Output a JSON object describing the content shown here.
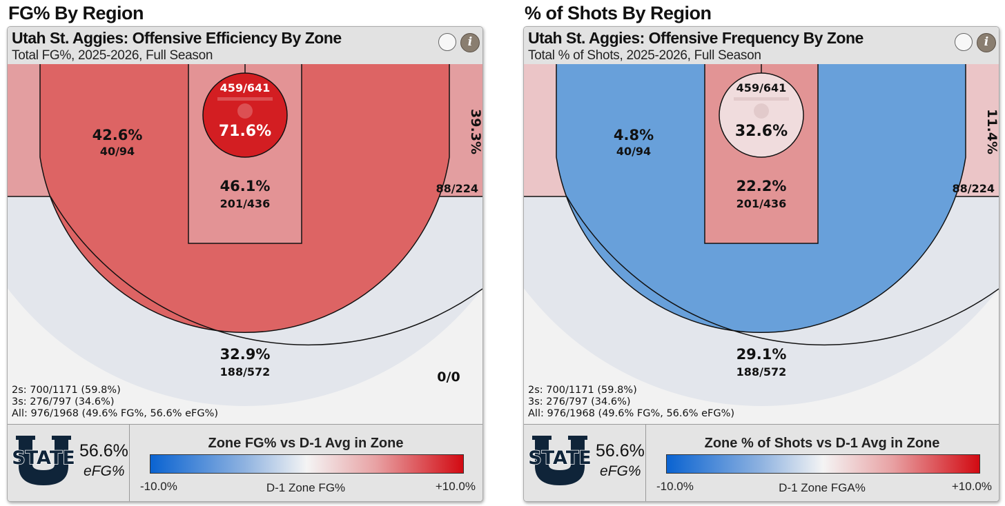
{
  "sections": [
    {
      "title": "FG% By Region"
    },
    {
      "title": "% of Shots By Region"
    }
  ],
  "chart_data": [
    {
      "type": "heatmap",
      "title": "Utah St. Aggies: Offensive Efficiency By Zone",
      "subtitle": "Total FG%, 2025-2026, Full Season",
      "zones": {
        "rim": {
          "pct": "71.6%",
          "count": "459/641"
        },
        "paint": {
          "pct": "46.1%",
          "count": "201/436"
        },
        "midrange_left": {
          "pct": "42.6%",
          "count": "40/94"
        },
        "midrange_right": {
          "pct": "39.3%",
          "count": "88/224"
        },
        "three": {
          "pct": "32.9%",
          "count": "188/572"
        },
        "deep": {
          "pct": "",
          "count": "0/0"
        }
      },
      "colors": {
        "rim": "#d31e22",
        "paint": "#e39395",
        "midrange_left": "#dd6464",
        "corner_left": "#e39ea0",
        "corner_right": "#e39ea0",
        "three": "#e3e6ec",
        "bg": "#f2f2f2"
      },
      "totals": {
        "twos": "2s: 700/1171 (59.8%)",
        "threes": "3s: 276/797 (34.6%)",
        "all": "All: 976/1968 (49.6% FG%, 56.6% eFG%)"
      },
      "efg": {
        "value": "56.6%",
        "label": "eFG%"
      },
      "legend": {
        "title": "Zone FG% vs D-1 Avg in Zone",
        "min": "-10.0%",
        "max": "+10.0%",
        "mid": "D-1 Zone FG%"
      },
      "logo": {
        "word": "STATE",
        "letter": "U"
      }
    },
    {
      "type": "heatmap",
      "title": "Utah St. Aggies: Offensive Frequency By Zone",
      "subtitle": "Total % of Shots, 2025-2026, Full Season",
      "zones": {
        "rim": {
          "pct": "32.6%",
          "count": "459/641"
        },
        "paint": {
          "pct": "22.2%",
          "count": "201/436"
        },
        "midrange_left": {
          "pct": "4.8%",
          "count": "40/94"
        },
        "midrange_right": {
          "pct": "11.4%",
          "count": "88/224"
        },
        "three": {
          "pct": "29.1%",
          "count": "188/572"
        },
        "deep": {
          "pct": "",
          "count": ""
        }
      },
      "colors": {
        "rim": "#f0dcdd",
        "paint": "#e29495",
        "midrange_left": "#68a0da",
        "corner_left": "#ebc5c7",
        "corner_right": "#ebc5c7",
        "three": "#e3e6ec",
        "bg": "#f2f2f2"
      },
      "totals": {
        "twos": "2s: 700/1171 (59.8%)",
        "threes": "3s: 276/797 (34.6%)",
        "all": "All: 976/1968 (49.6% FG%, 56.6% eFG%)"
      },
      "efg": {
        "value": "56.6%",
        "label": "eFG%"
      },
      "legend": {
        "title": "Zone % of Shots vs D-1 Avg in Zone",
        "min": "-10.0%",
        "max": "+10.0%",
        "mid": "D-1 Zone FGA%"
      },
      "logo": {
        "word": "STATE",
        "letter": "U"
      }
    }
  ]
}
